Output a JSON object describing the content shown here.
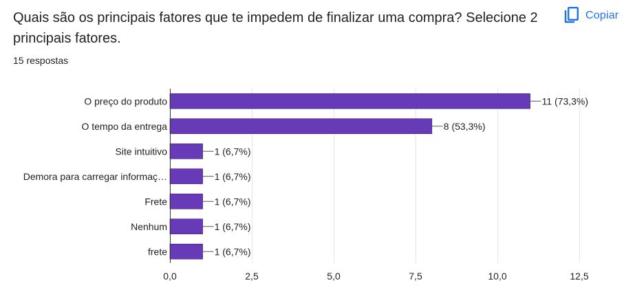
{
  "question": {
    "title": "Quais são os principais fatores que te impedem de finalizar uma compra? Selecione 2 principais fatores.",
    "response_count": "15 respostas"
  },
  "copy_button": {
    "label": "Copiar",
    "icon": "copy-icon"
  },
  "colors": {
    "bar": "#673ab7",
    "accent": "#1a73e8"
  },
  "chart_data": {
    "type": "bar",
    "orientation": "horizontal",
    "categories": [
      "O preço do produto",
      "O tempo da entrega",
      "Site intuitivo",
      "Demora para carregar informaç…",
      "Frete",
      "Nenhum",
      "frete"
    ],
    "values": [
      11,
      8,
      1,
      1,
      1,
      1,
      1
    ],
    "data_labels": [
      "11 (73,3%)",
      "8 (53,3%)",
      "1 (6,7%)",
      "1 (6,7%)",
      "1 (6,7%)",
      "1 (6,7%)",
      "1 (6,7%)"
    ],
    "xlim": [
      0,
      12.5
    ],
    "x_ticks": [
      0,
      2.5,
      5,
      7.5,
      10,
      12.5
    ],
    "x_tick_labels": [
      "0,0",
      "2,5",
      "5,0",
      "7,5",
      "10,0",
      "12,5"
    ],
    "grid": true
  }
}
